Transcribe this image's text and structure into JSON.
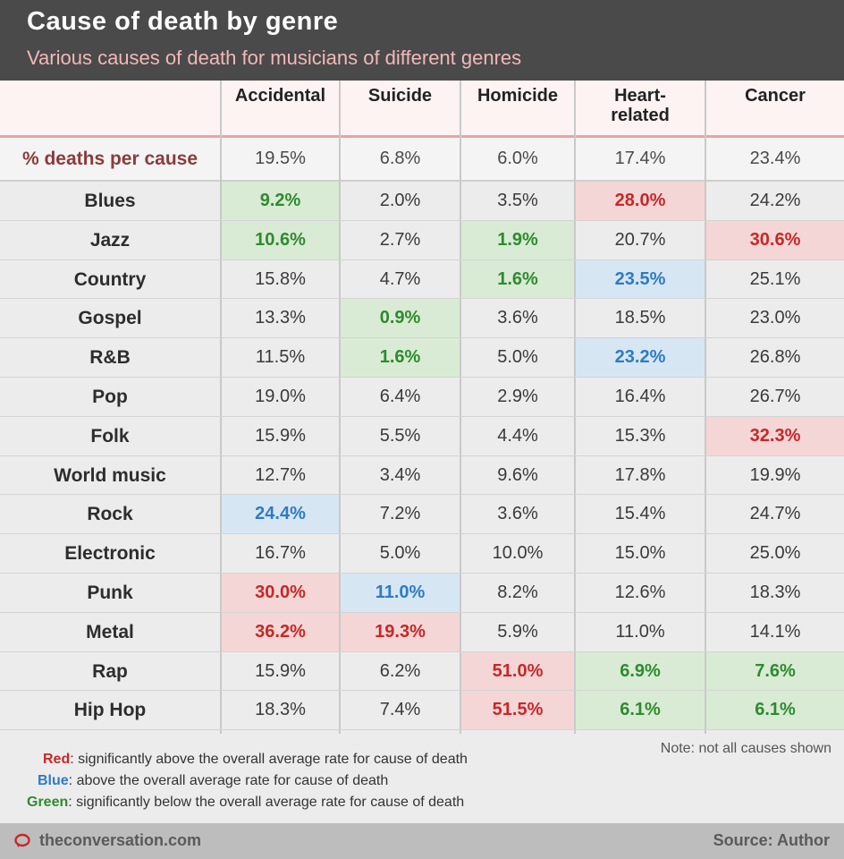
{
  "header": {
    "title": "Cause of death by genre",
    "subtitle": "Various causes of death for musicians of different genres"
  },
  "chart_data": {
    "type": "table",
    "columns": [
      "Accidental",
      "Suicide",
      "Homicide",
      "Heart-\nrelated",
      "Cancer"
    ],
    "summary": {
      "label": "% deaths per cause",
      "values": [
        "19.5%",
        "6.8%",
        "6.0%",
        "17.4%",
        "23.4%"
      ]
    },
    "rows": [
      {
        "genre": "Blues",
        "values": [
          "9.2%",
          "2.0%",
          "3.5%",
          "28.0%",
          "24.2%"
        ],
        "highlight": [
          "green",
          "",
          "",
          "red",
          ""
        ]
      },
      {
        "genre": "Jazz",
        "values": [
          "10.6%",
          "2.7%",
          "1.9%",
          "20.7%",
          "30.6%"
        ],
        "highlight": [
          "green",
          "",
          "green",
          "",
          "red"
        ]
      },
      {
        "genre": "Country",
        "values": [
          "15.8%",
          "4.7%",
          "1.6%",
          "23.5%",
          "25.1%"
        ],
        "highlight": [
          "",
          "",
          "green",
          "blue",
          ""
        ]
      },
      {
        "genre": "Gospel",
        "values": [
          "13.3%",
          "0.9%",
          "3.6%",
          "18.5%",
          "23.0%"
        ],
        "highlight": [
          "",
          "green",
          "",
          "",
          ""
        ]
      },
      {
        "genre": "R&B",
        "values": [
          "11.5%",
          "1.6%",
          "5.0%",
          "23.2%",
          "26.8%"
        ],
        "highlight": [
          "",
          "green",
          "",
          "blue",
          ""
        ]
      },
      {
        "genre": "Pop",
        "values": [
          "19.0%",
          "6.4%",
          "2.9%",
          "16.4%",
          "26.7%"
        ],
        "highlight": [
          "",
          "",
          "",
          "",
          ""
        ]
      },
      {
        "genre": "Folk",
        "values": [
          "15.9%",
          "5.5%",
          "4.4%",
          "15.3%",
          "32.3%"
        ],
        "highlight": [
          "",
          "",
          "",
          "",
          "red"
        ]
      },
      {
        "genre": "World music",
        "values": [
          "12.7%",
          "3.4%",
          "9.6%",
          "17.8%",
          "19.9%"
        ],
        "highlight": [
          "",
          "",
          "",
          "",
          ""
        ]
      },
      {
        "genre": "Rock",
        "values": [
          "24.4%",
          "7.2%",
          "3.6%",
          "15.4%",
          "24.7%"
        ],
        "highlight": [
          "blue",
          "",
          "",
          "",
          ""
        ]
      },
      {
        "genre": "Electronic",
        "values": [
          "16.7%",
          "5.0%",
          "10.0%",
          "15.0%",
          "25.0%"
        ],
        "highlight": [
          "",
          "",
          "",
          "",
          ""
        ]
      },
      {
        "genre": "Punk",
        "values": [
          "30.0%",
          "11.0%",
          "8.2%",
          "12.6%",
          "18.3%"
        ],
        "highlight": [
          "red",
          "blue",
          "",
          "",
          ""
        ]
      },
      {
        "genre": "Metal",
        "values": [
          "36.2%",
          "19.3%",
          "5.9%",
          "11.0%",
          "14.1%"
        ],
        "highlight": [
          "red",
          "red",
          "",
          "",
          ""
        ]
      },
      {
        "genre": "Rap",
        "values": [
          "15.9%",
          "6.2%",
          "51.0%",
          "6.9%",
          "7.6%"
        ],
        "highlight": [
          "",
          "",
          "red",
          "green",
          "green"
        ]
      },
      {
        "genre": "Hip Hop",
        "values": [
          "18.3%",
          "7.4%",
          "51.5%",
          "6.1%",
          "6.1%"
        ],
        "highlight": [
          "",
          "",
          "red",
          "green",
          "green"
        ]
      }
    ],
    "highlight_colors": {
      "red": "#c62828",
      "blue": "#2e7bc4",
      "green": "#2e8b2e"
    }
  },
  "legend": {
    "red_key": "Red",
    "red_text": ": significantly above the overall average rate for cause of death",
    "blue_key": "Blue",
    "blue_text": ": above the overall average rate for cause of death",
    "green_key": "Green",
    "green_text": ": significantly below the overall average rate for cause of death",
    "note": "Note: not all causes shown"
  },
  "footer": {
    "site": "theconversation.com",
    "source": "Source: Author"
  }
}
